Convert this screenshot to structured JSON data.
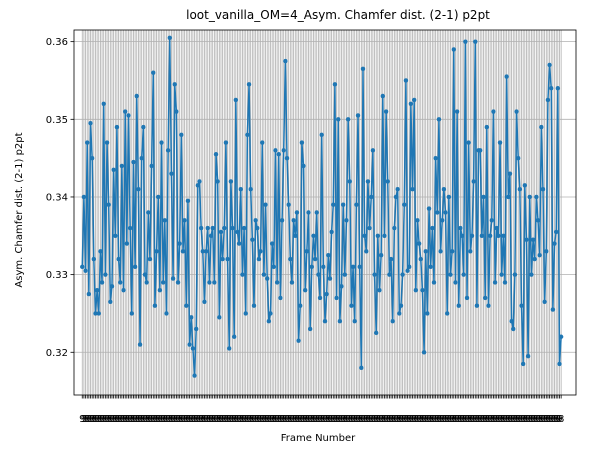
{
  "chart_data": {
    "type": "line",
    "title": "loot_vanilla_OM=4_Asym. Chamfer dist. (2-1) p2pt",
    "xlabel": "Frame Number",
    "ylabel": "Asym. Chamfer dist. (2-1) p2pt",
    "ylim": [
      0.3145,
      0.3615
    ],
    "xlim": [
      -5,
      299
    ],
    "y_ticks": [
      0.32,
      0.33,
      0.34,
      0.35,
      0.36
    ],
    "y_tick_labels": [
      "0.32",
      "0.33",
      "0.34",
      "0.35",
      "0.36"
    ],
    "x_tick_labels": [
      "9",
      "8"
    ],
    "grid": true,
    "series_color": "#1f77b4",
    "x_start": 0,
    "series": [
      {
        "values": [
          0.331,
          0.34,
          0.3305,
          0.347,
          0.3275,
          0.3495,
          0.345,
          0.332,
          0.325,
          0.328,
          0.325,
          0.333,
          0.329,
          0.352,
          0.33,
          0.347,
          0.339,
          0.3265,
          0.3285,
          0.3435,
          0.335,
          0.349,
          0.332,
          0.329,
          0.344,
          0.328,
          0.351,
          0.334,
          0.3505,
          0.336,
          0.325,
          0.3445,
          0.331,
          0.353,
          0.341,
          0.321,
          0.345,
          0.349,
          0.33,
          0.329,
          0.338,
          0.332,
          0.344,
          0.356,
          0.326,
          0.333,
          0.34,
          0.328,
          0.347,
          0.329,
          0.337,
          0.325,
          0.346,
          0.3605,
          0.343,
          0.3295,
          0.3545,
          0.351,
          0.329,
          0.334,
          0.348,
          0.333,
          0.337,
          0.326,
          0.3395,
          0.321,
          0.3245,
          0.3205,
          0.317,
          0.323,
          0.3415,
          0.342,
          0.336,
          0.333,
          0.3265,
          0.333,
          0.336,
          0.329,
          0.335,
          0.336,
          0.329,
          0.3455,
          0.342,
          0.3245,
          0.3355,
          0.332,
          0.336,
          0.347,
          0.332,
          0.3205,
          0.342,
          0.336,
          0.322,
          0.3525,
          0.3355,
          0.334,
          0.341,
          0.33,
          0.336,
          0.325,
          0.348,
          0.3545,
          0.341,
          0.3345,
          0.326,
          0.337,
          0.336,
          0.332,
          0.333,
          0.347,
          0.33,
          0.339,
          0.3295,
          0.324,
          0.325,
          0.334,
          0.331,
          0.346,
          0.329,
          0.3455,
          0.327,
          0.337,
          0.346,
          0.3575,
          0.345,
          0.339,
          0.332,
          0.329,
          0.337,
          0.335,
          0.338,
          0.3215,
          0.326,
          0.347,
          0.344,
          0.328,
          0.333,
          0.338,
          0.323,
          0.331,
          0.335,
          0.332,
          0.338,
          0.33,
          0.327,
          0.348,
          0.331,
          0.324,
          0.3275,
          0.3325,
          0.3295,
          0.3355,
          0.339,
          0.3545,
          0.327,
          0.35,
          0.324,
          0.3285,
          0.339,
          0.33,
          0.337,
          0.35,
          0.342,
          0.326,
          0.331,
          0.324,
          0.339,
          0.3505,
          0.331,
          0.318,
          0.3565,
          0.335,
          0.333,
          0.342,
          0.336,
          0.34,
          0.346,
          0.33,
          0.3225,
          0.335,
          0.328,
          0.3325,
          0.353,
          0.335,
          0.351,
          0.342,
          0.33,
          0.332,
          0.324,
          0.336,
          0.34,
          0.341,
          0.325,
          0.326,
          0.33,
          0.339,
          0.355,
          0.3305,
          0.331,
          0.352,
          0.341,
          0.3525,
          0.328,
          0.337,
          0.334,
          0.332,
          0.328,
          0.32,
          0.333,
          0.325,
          0.3385,
          0.331,
          0.336,
          0.329,
          0.345,
          0.338,
          0.35,
          0.333,
          0.337,
          0.341,
          0.338,
          0.325,
          0.34,
          0.33,
          0.333,
          0.359,
          0.329,
          0.351,
          0.326,
          0.336,
          0.335,
          0.33,
          0.36,
          0.327,
          0.347,
          0.333,
          0.335,
          0.342,
          0.36,
          0.326,
          0.346,
          0.346,
          0.335,
          0.34,
          0.327,
          0.349,
          0.326,
          0.335,
          0.337,
          0.351,
          0.329,
          0.336,
          0.335,
          0.347,
          0.33,
          0.335,
          0.329,
          0.3555,
          0.34,
          0.343,
          0.324,
          0.323,
          0.33,
          0.351,
          0.345,
          0.341,
          0.326,
          0.3185,
          0.3415,
          0.3345,
          0.3195,
          0.34,
          0.33,
          0.3345,
          0.332,
          0.34,
          0.337,
          0.3325,
          0.349,
          0.341,
          0.3265,
          0.333,
          0.3525,
          0.357,
          0.354,
          0.3255,
          0.334,
          0.3355,
          0.354,
          0.3185,
          0.322
        ]
      }
    ]
  }
}
